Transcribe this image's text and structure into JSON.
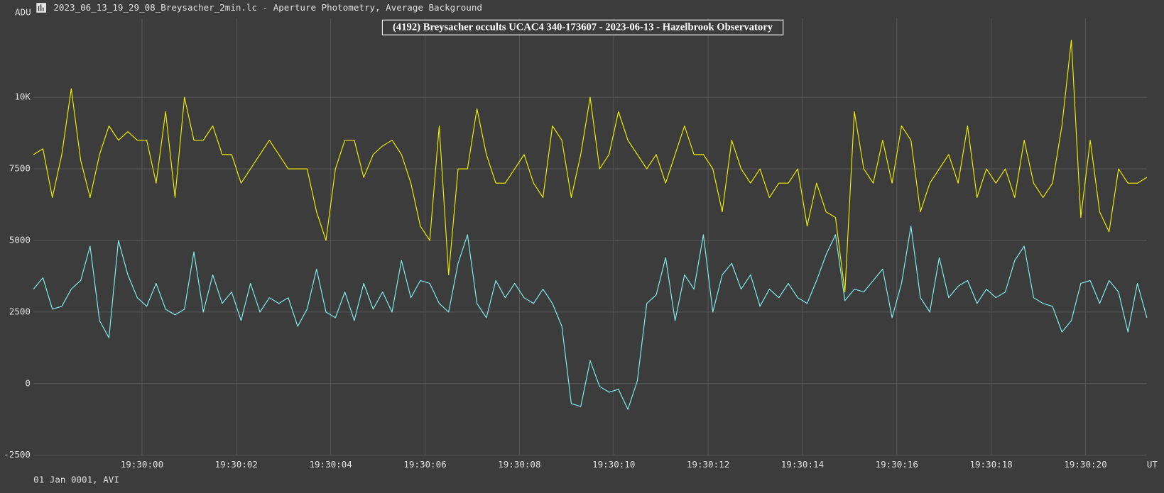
{
  "window_title": "2023_06_13_19_29_08_Breysacher_2min.lc - Aperture Photometry, Average Background",
  "footer": "01 Jan 0001, AVI",
  "chart_data": {
    "type": "line",
    "title": "(4192) Breysacher occults UCAC4 340-173607 - 2023-06-13 - Hazelbrook Observatory",
    "y_label": "ADU",
    "x_label": "UT",
    "grid": true,
    "x": [
      70197.7,
      70197.9,
      70198.1,
      70198.3,
      70198.5,
      70198.7,
      70198.9,
      70199.1,
      70199.3,
      70199.5,
      70199.7,
      70199.9,
      70200.1,
      70200.3,
      70200.5,
      70200.7,
      70200.9,
      70201.1,
      70201.3,
      70201.5,
      70201.7,
      70201.9,
      70202.1,
      70202.3,
      70202.5,
      70202.7,
      70202.9,
      70203.1,
      70203.3,
      70203.5,
      70203.7,
      70203.9,
      70204.1,
      70204.3,
      70204.5,
      70204.7,
      70204.9,
      70205.1,
      70205.3,
      70205.5,
      70205.7,
      70205.9,
      70206.1,
      70206.3,
      70206.5,
      70206.7,
      70206.9,
      70207.1,
      70207.3,
      70207.5,
      70207.7,
      70207.9,
      70208.1,
      70208.3,
      70208.5,
      70208.7,
      70208.9,
      70209.1,
      70209.3,
      70209.5,
      70209.7,
      70209.9,
      70210.1,
      70210.3,
      70210.5,
      70210.7,
      70210.9,
      70211.1,
      70211.3,
      70211.5,
      70211.7,
      70211.9,
      70212.1,
      70212.3,
      70212.5,
      70212.7,
      70212.9,
      70213.1,
      70213.3,
      70213.5,
      70213.7,
      70213.9,
      70214.1,
      70214.3,
      70214.5,
      70214.7,
      70214.9,
      70215.1,
      70215.3,
      70215.5,
      70215.7,
      70215.9,
      70216.1,
      70216.3,
      70216.5,
      70216.7,
      70216.9,
      70217.1,
      70217.3,
      70217.5,
      70217.7,
      70217.9,
      70218.1,
      70218.3,
      70218.5,
      70218.7,
      70218.9,
      70219.1,
      70219.3,
      70219.5,
      70219.7,
      70219.9,
      70220.1,
      70220.3,
      70220.5,
      70220.7,
      70220.9,
      70221.1,
      70221.3
    ],
    "series": [
      {
        "color": "#f0f000",
        "values": [
          8000,
          8200,
          6500,
          8000,
          10300,
          7800,
          6500,
          8000,
          9000,
          8500,
          8800,
          8500,
          8500,
          7000,
          9500,
          6500,
          10000,
          8500,
          8500,
          9000,
          8000,
          8000,
          7000,
          7500,
          8000,
          8500,
          8000,
          7500,
          7500,
          7500,
          6000,
          5000,
          7500,
          8500,
          8500,
          7200,
          8000,
          8300,
          8500,
          8000,
          7000,
          5500,
          5000,
          9000,
          3800,
          7500,
          7500,
          9600,
          8000,
          7000,
          7000,
          7500,
          8000,
          7000,
          6500,
          9000,
          8500,
          6500,
          8000,
          10000,
          7500,
          8000,
          9500,
          8500,
          8000,
          7500,
          8000,
          7000,
          8000,
          9000,
          8000,
          8000,
          7500,
          6000,
          8500,
          7500,
          7000,
          7500,
          6500,
          7000,
          7000,
          7500,
          5500,
          7000,
          6000,
          5800,
          3200,
          9500,
          7500,
          7000,
          8500,
          7000,
          9000,
          8500,
          6000,
          7000,
          7500,
          8000,
          7000,
          9000,
          6500,
          7500,
          7000,
          7500,
          6500,
          8500,
          7000,
          6500,
          7000,
          9000,
          12000,
          5800,
          8500,
          6000,
          5300,
          7500,
          7000,
          7000,
          7200
        ]
      },
      {
        "color": "#80f0f0",
        "values": [
          3300,
          3700,
          2600,
          2700,
          3300,
          3600,
          4800,
          2200,
          1600,
          5000,
          3800,
          3000,
          2700,
          3500,
          2600,
          2400,
          2600,
          4600,
          2500,
          3800,
          2800,
          3200,
          2200,
          3500,
          2500,
          3000,
          2800,
          3000,
          2000,
          2600,
          4000,
          2500,
          2300,
          3200,
          2200,
          3500,
          2600,
          3200,
          2500,
          4300,
          3000,
          3600,
          3500,
          2800,
          2500,
          4200,
          5200,
          2800,
          2300,
          3600,
          3000,
          3500,
          3000,
          2800,
          3300,
          2800,
          2000,
          -700,
          -800,
          800,
          -100,
          -300,
          -200,
          -900,
          100,
          2800,
          3100,
          4400,
          2200,
          3800,
          3300,
          5200,
          2500,
          3800,
          4200,
          3300,
          3800,
          2700,
          3300,
          3000,
          3500,
          3000,
          2800,
          3600,
          4500,
          5200,
          2900,
          3300,
          3200,
          3600,
          4000,
          2300,
          3500,
          5500,
          3000,
          2500,
          4400,
          3000,
          3400,
          3600,
          2800,
          3300,
          3000,
          3200,
          4300,
          4800,
          3000,
          2800,
          2700,
          1800,
          2200,
          3500,
          3600,
          2800,
          3600,
          3200,
          1800,
          3500,
          2300
        ]
      }
    ],
    "xlim": [
      70197.7,
      70221.3
    ],
    "xticks": [
      {
        "value": 70200,
        "label": "19:30:00"
      },
      {
        "value": 70202,
        "label": "19:30:02"
      },
      {
        "value": 70204,
        "label": "19:30:04"
      },
      {
        "value": 70206,
        "label": "19:30:06"
      },
      {
        "value": 70208,
        "label": "19:30:08"
      },
      {
        "value": 70210,
        "label": "19:30:10"
      },
      {
        "value": 70212,
        "label": "19:30:12"
      },
      {
        "value": 70214,
        "label": "19:30:14"
      },
      {
        "value": 70216,
        "label": "19:30:16"
      },
      {
        "value": 70218,
        "label": "19:30:18"
      },
      {
        "value": 70220,
        "label": "19:30:20"
      }
    ],
    "ylim": [
      -2500,
      12750
    ],
    "yticks": [
      -2500,
      0,
      2500,
      5000,
      7500,
      {
        "value": 10000,
        "label": "10K"
      }
    ]
  }
}
